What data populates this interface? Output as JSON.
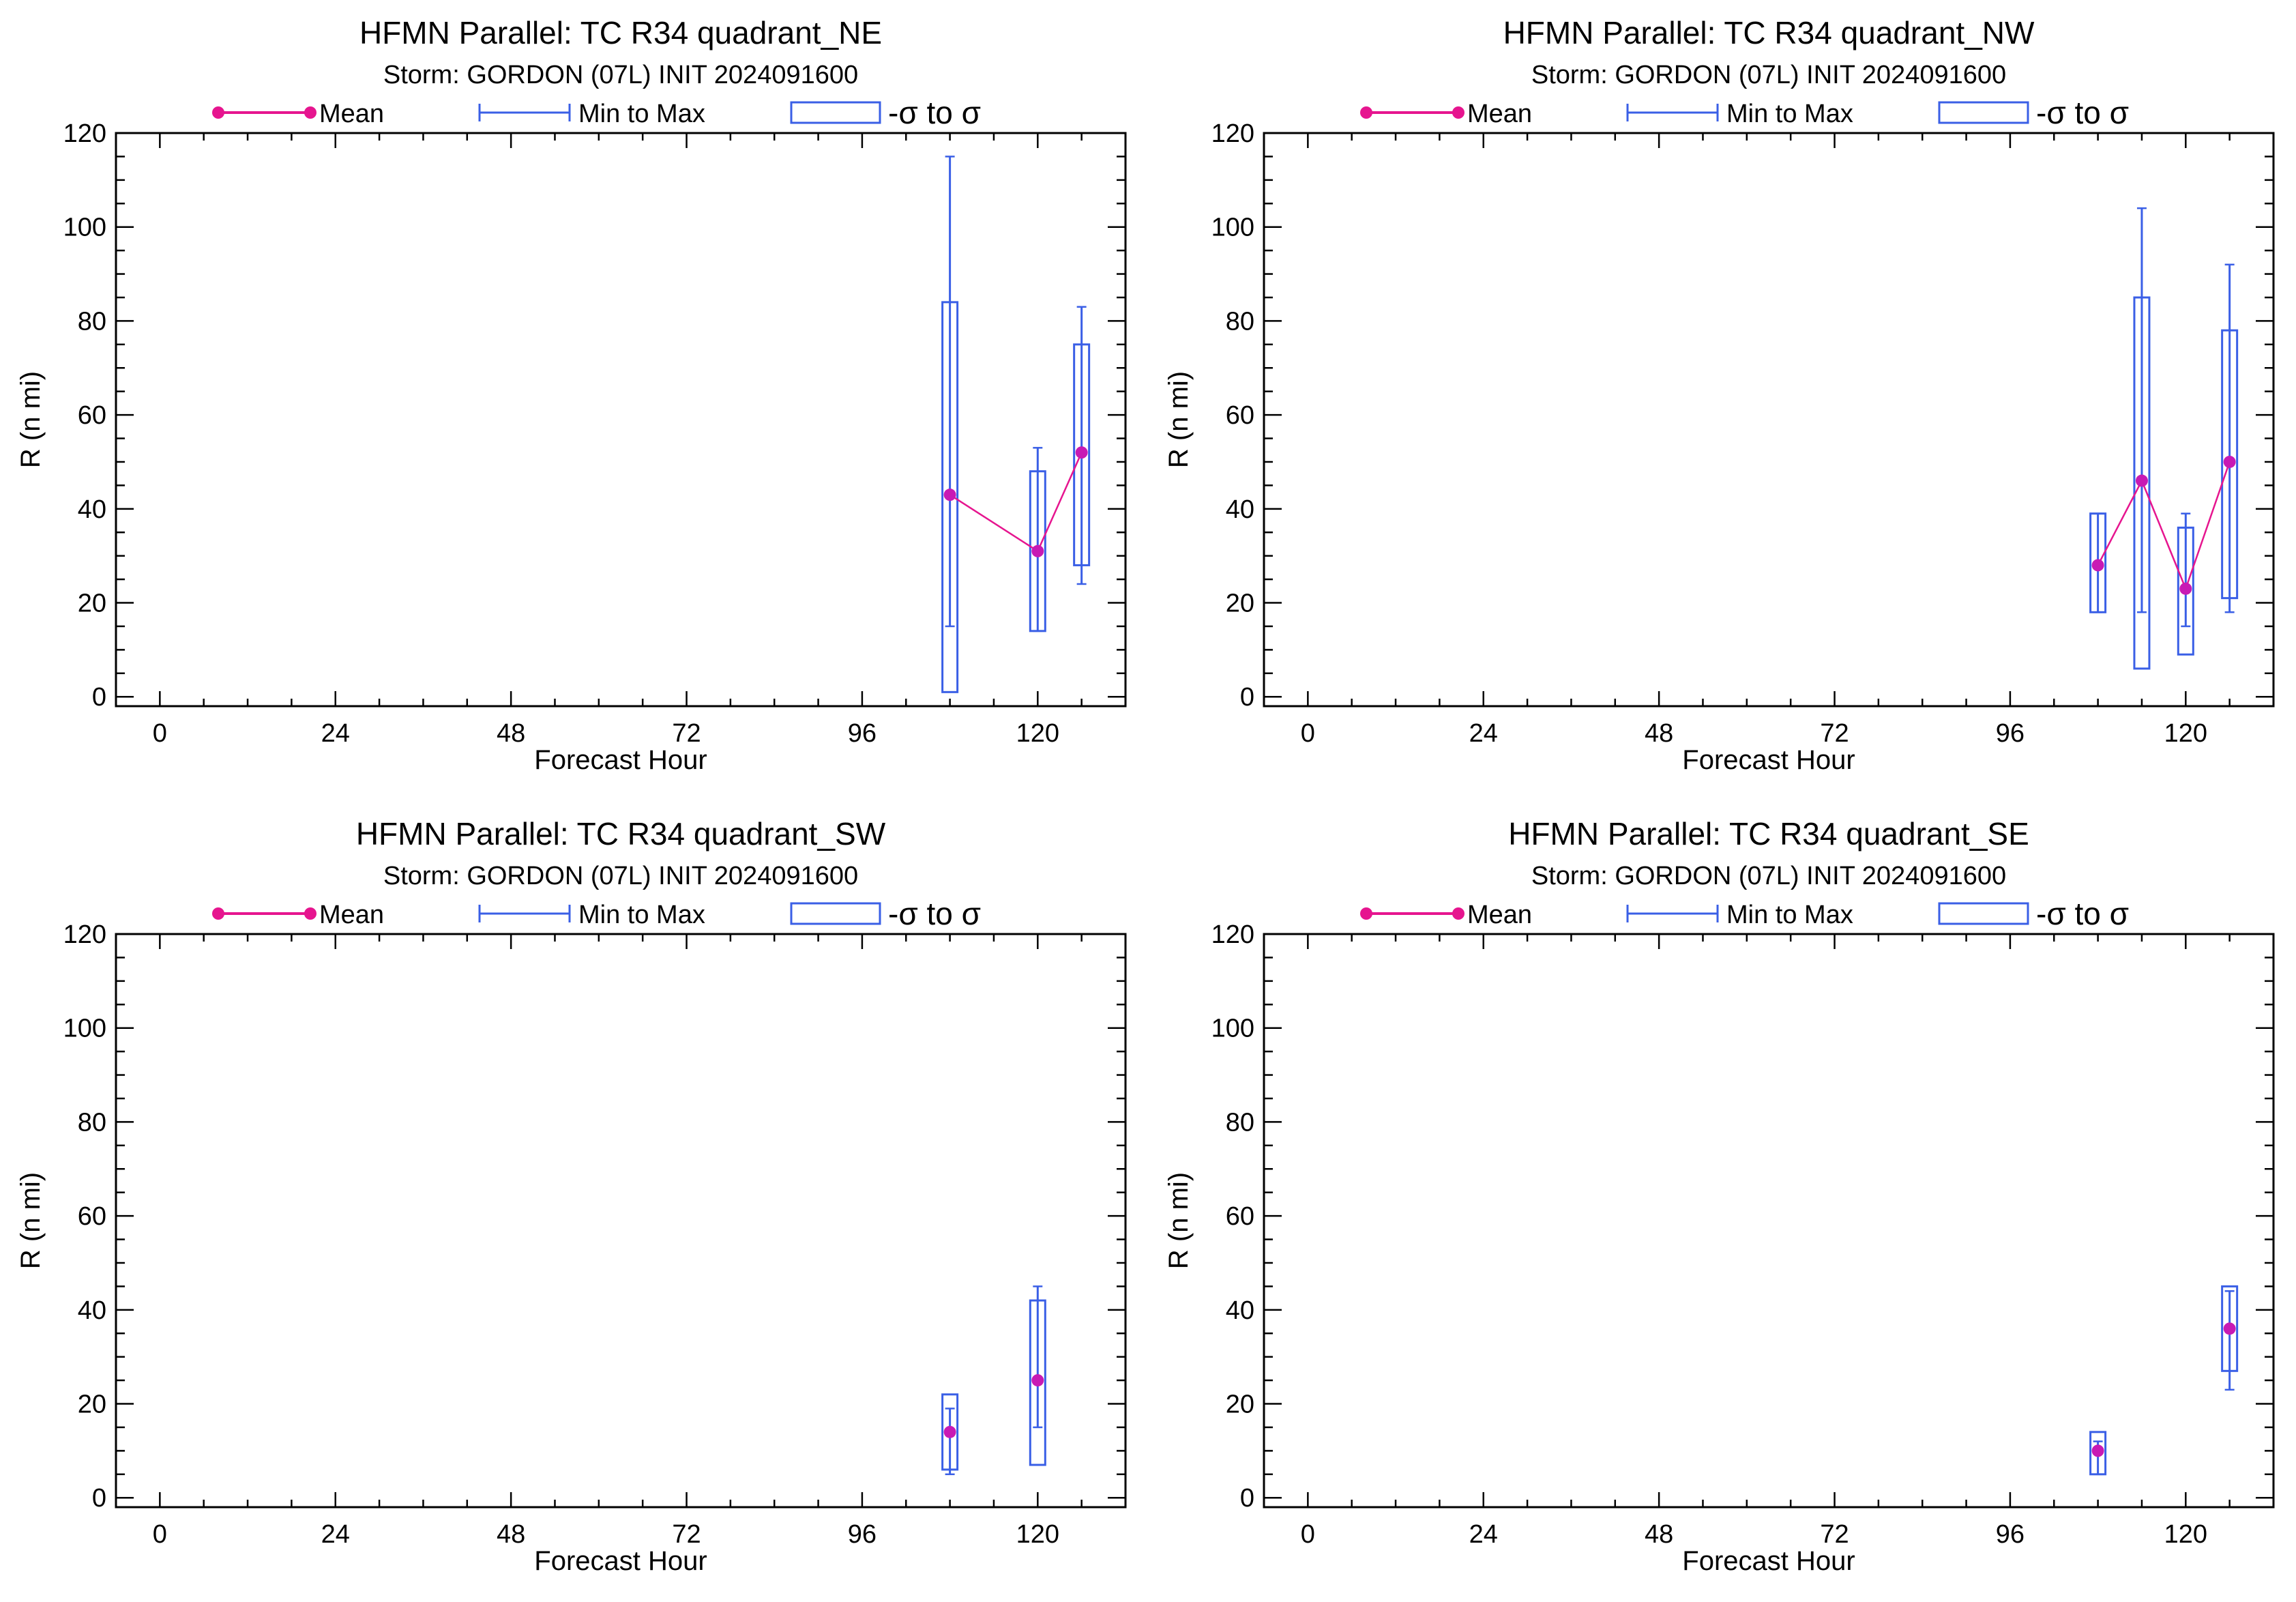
{
  "legend": {
    "mean_label": "Mean",
    "minmax_label": "Min to Max",
    "sigma_label": "-σ to σ"
  },
  "colors": {
    "mean": "#e6158f",
    "mean_marker": "#c81ab4",
    "box": "#3a5fe6",
    "axis": "#000000"
  },
  "chart_data": [
    {
      "type": "box",
      "title": "HFMN Parallel: TC  R34 quadrant_NE",
      "subtitle": "Storm: GORDON (07L) INIT 2024091600",
      "xlabel": "Forecast Hour",
      "ylabel": "R (n mi)",
      "xlim": [
        -6,
        132
      ],
      "ylim": [
        -2,
        120
      ],
      "xticks": [
        0,
        24,
        48,
        72,
        96,
        120
      ],
      "yticks": [
        0,
        20,
        40,
        60,
        80,
        100,
        120
      ],
      "mean_line": true,
      "points": [
        {
          "x": 108,
          "mean": 43,
          "min": 15,
          "max": 115,
          "sd_low": 1,
          "sd_high": 84
        },
        {
          "x": 120,
          "mean": 31,
          "min": 14,
          "max": 53,
          "sd_low": 14,
          "sd_high": 48
        },
        {
          "x": 126,
          "mean": 52,
          "min": 24,
          "max": 83,
          "sd_low": 28,
          "sd_high": 75
        }
      ]
    },
    {
      "type": "box",
      "title": "HFMN Parallel: TC  R34 quadrant_NW",
      "subtitle": "Storm: GORDON (07L) INIT 2024091600",
      "xlabel": "Forecast Hour",
      "ylabel": "R (n mi)",
      "xlim": [
        -6,
        132
      ],
      "ylim": [
        -2,
        120
      ],
      "xticks": [
        0,
        24,
        48,
        72,
        96,
        120
      ],
      "yticks": [
        0,
        20,
        40,
        60,
        80,
        100,
        120
      ],
      "mean_line": true,
      "points": [
        {
          "x": 108,
          "mean": 28,
          "min": 18,
          "max": 39,
          "sd_low": 18,
          "sd_high": 39
        },
        {
          "x": 114,
          "mean": 46,
          "min": 18,
          "max": 104,
          "sd_low": 6,
          "sd_high": 85
        },
        {
          "x": 120,
          "mean": 23,
          "min": 15,
          "max": 39,
          "sd_low": 9,
          "sd_high": 36
        },
        {
          "x": 126,
          "mean": 50,
          "min": 18,
          "max": 92,
          "sd_low": 21,
          "sd_high": 78
        }
      ]
    },
    {
      "type": "box",
      "title": "HFMN Parallel: TC  R34 quadrant_SW",
      "subtitle": "Storm: GORDON (07L) INIT 2024091600",
      "xlabel": "Forecast Hour",
      "ylabel": "R (n mi)",
      "xlim": [
        -6,
        132
      ],
      "ylim": [
        -2,
        120
      ],
      "xticks": [
        0,
        24,
        48,
        72,
        96,
        120
      ],
      "yticks": [
        0,
        20,
        40,
        60,
        80,
        100,
        120
      ],
      "mean_line": false,
      "points": [
        {
          "x": 108,
          "mean": 14,
          "min": 5,
          "max": 19,
          "sd_low": 6,
          "sd_high": 22
        },
        {
          "x": 120,
          "mean": 25,
          "min": 15,
          "max": 45,
          "sd_low": 7,
          "sd_high": 42
        }
      ]
    },
    {
      "type": "box",
      "title": "HFMN Parallel: TC  R34 quadrant_SE",
      "subtitle": "Storm: GORDON (07L) INIT 2024091600",
      "xlabel": "Forecast Hour",
      "ylabel": "R (n mi)",
      "xlim": [
        -6,
        132
      ],
      "ylim": [
        -2,
        120
      ],
      "xticks": [
        0,
        24,
        48,
        72,
        96,
        120
      ],
      "yticks": [
        0,
        20,
        40,
        60,
        80,
        100,
        120
      ],
      "mean_line": false,
      "points": [
        {
          "x": 108,
          "mean": 10,
          "min": 5,
          "max": 12,
          "sd_low": 5,
          "sd_high": 14
        },
        {
          "x": 126,
          "mean": 36,
          "min": 23,
          "max": 44,
          "sd_low": 27,
          "sd_high": 45
        }
      ]
    }
  ]
}
